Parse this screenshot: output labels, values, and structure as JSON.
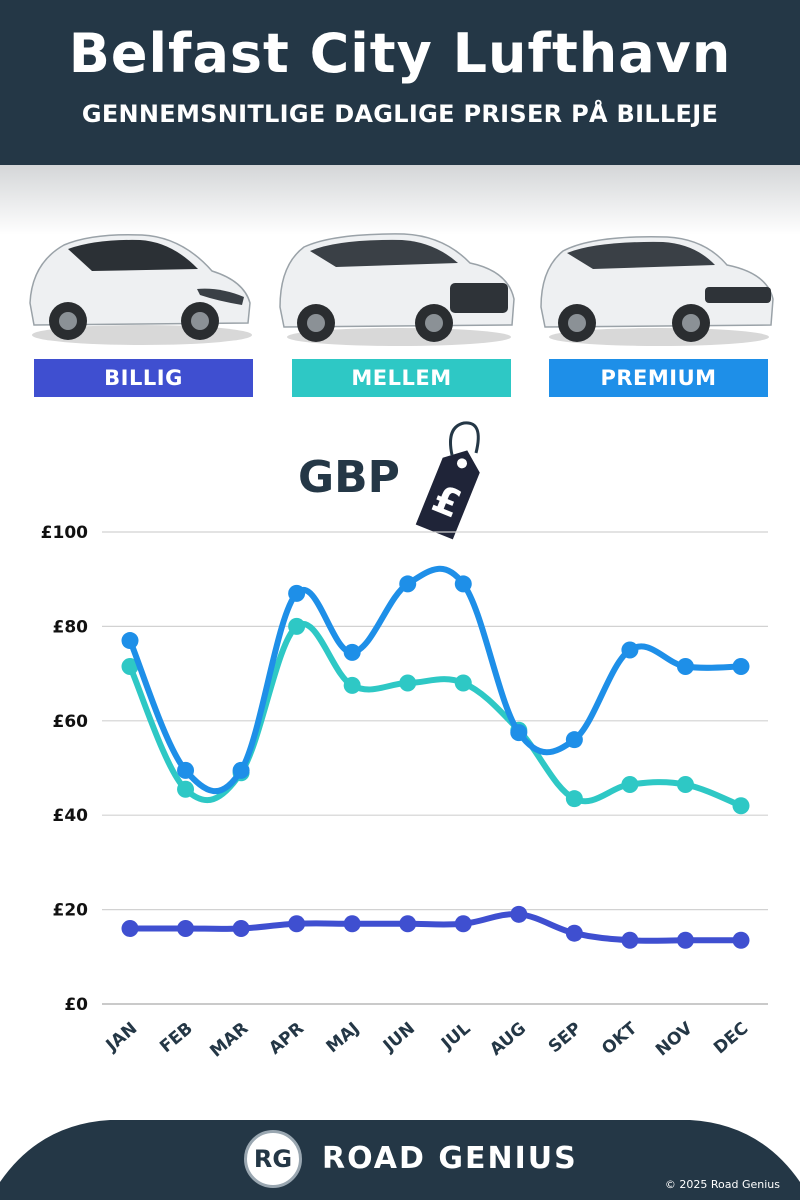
{
  "header": {
    "title": "Belfast City Lufthavn",
    "subtitle": "GENNEMSNITLIGE DAGLIGE PRISER PÅ BILLEJE"
  },
  "categories": [
    {
      "label": "BILLIG",
      "color": "#3f4fd0"
    },
    {
      "label": "MELLEM",
      "color": "#2ec8c5"
    },
    {
      "label": "PREMIUM",
      "color": "#1e8fe8"
    }
  ],
  "currency": {
    "label": "GBP",
    "symbol": "£"
  },
  "chart_data": {
    "type": "line",
    "categories": [
      "JAN",
      "FEB",
      "MAR",
      "APR",
      "MAJ",
      "JUN",
      "JUL",
      "AUG",
      "SEP",
      "OKT",
      "NOV",
      "DEC"
    ],
    "series": [
      {
        "name": "PREMIUM",
        "color": "#1e8fe8",
        "values": [
          77,
          49.5,
          49.5,
          87,
          74.5,
          89,
          89,
          57.5,
          56,
          75,
          71.5,
          71.5
        ]
      },
      {
        "name": "MELLEM",
        "color": "#2ec8c5",
        "values": [
          71.5,
          45.5,
          49,
          80,
          67.5,
          68,
          68,
          58,
          43.5,
          46.5,
          46.5,
          42
        ]
      },
      {
        "name": "BILLIG",
        "color": "#3f4fd0",
        "values": [
          16,
          16,
          16,
          17,
          17,
          17,
          17,
          19,
          15,
          13.5,
          13.5,
          13.5
        ]
      }
    ],
    "yticks": [
      {
        "value": 0,
        "label": "£0"
      },
      {
        "value": 20,
        "label": "£20"
      },
      {
        "value": 40,
        "label": "£40"
      },
      {
        "value": 60,
        "label": "£60"
      },
      {
        "value": 80,
        "label": "£80"
      },
      {
        "value": 100,
        "label": "£100"
      }
    ],
    "ylim": [
      0,
      100
    ],
    "grid": true
  },
  "footer": {
    "logo": "RG",
    "brand": "ROAD GENIUS",
    "copyright": "© 2025 Road Genius"
  }
}
